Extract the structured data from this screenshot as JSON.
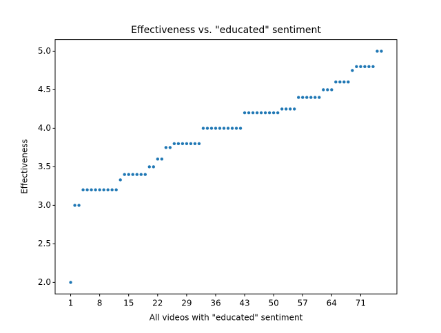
{
  "chart_data": {
    "type": "scatter",
    "title": "Effectiveness vs. \"educated\" sentiment",
    "x_label": "All videos with \"educated\" sentiment",
    "y_label": "Effectiveness",
    "color": "#1f77b4",
    "x": [
      1,
      2,
      3,
      4,
      5,
      6,
      7,
      8,
      9,
      10,
      11,
      12,
      13,
      14,
      15,
      16,
      17,
      18,
      19,
      20,
      21,
      22,
      23,
      24,
      25,
      26,
      27,
      28,
      29,
      30,
      31,
      32,
      33,
      34,
      35,
      36,
      37,
      38,
      39,
      40,
      41,
      42,
      43,
      44,
      45,
      46,
      47,
      48,
      49,
      50,
      51,
      52,
      53,
      54,
      55,
      56,
      57,
      58,
      59,
      60,
      61,
      62,
      63,
      64,
      65,
      66,
      67,
      68,
      69,
      70,
      71,
      72,
      73,
      74,
      75,
      76
    ],
    "values": [
      2.0,
      3.0,
      3.0,
      3.2,
      3.2,
      3.2,
      3.2,
      3.2,
      3.2,
      3.2,
      3.2,
      3.2,
      3.33,
      3.4,
      3.4,
      3.4,
      3.4,
      3.4,
      3.4,
      3.5,
      3.5,
      3.6,
      3.6,
      3.75,
      3.75,
      3.8,
      3.8,
      3.8,
      3.8,
      3.8,
      3.8,
      3.8,
      4.0,
      4.0,
      4.0,
      4.0,
      4.0,
      4.0,
      4.0,
      4.0,
      4.0,
      4.0,
      4.2,
      4.2,
      4.2,
      4.2,
      4.2,
      4.2,
      4.2,
      4.2,
      4.2,
      4.25,
      4.25,
      4.25,
      4.25,
      4.4,
      4.4,
      4.4,
      4.4,
      4.4,
      4.4,
      4.5,
      4.5,
      4.5,
      4.6,
      4.6,
      4.6,
      4.6,
      4.75,
      4.8,
      4.8,
      4.8,
      4.8,
      4.8,
      5.0,
      5.0
    ],
    "xlim": [
      -2.75,
      79.75
    ],
    "ylim": [
      1.85,
      5.15
    ],
    "xticks": [
      1,
      8,
      15,
      22,
      29,
      36,
      43,
      50,
      57,
      64,
      71
    ],
    "yticks": [
      {
        "value": 2.0,
        "label": "2.0"
      },
      {
        "value": 2.5,
        "label": "2.5"
      },
      {
        "value": 3.0,
        "label": "3.0"
      },
      {
        "value": 3.5,
        "label": "3.5"
      },
      {
        "value": 4.0,
        "label": "4.0"
      },
      {
        "value": 4.5,
        "label": "4.5"
      },
      {
        "value": 5.0,
        "label": "5.0"
      }
    ]
  }
}
